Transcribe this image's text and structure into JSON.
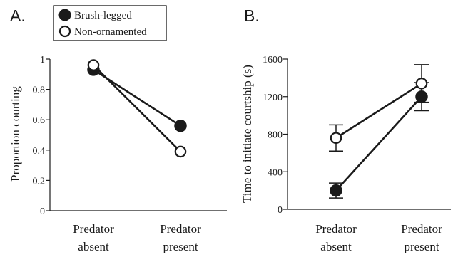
{
  "legend": {
    "items": [
      {
        "label": "Brush-legged",
        "filled": true
      },
      {
        "label": "Non-ornamented",
        "filled": false
      }
    ]
  },
  "colors": {
    "ink": "#1a1a1a",
    "open_fill": "#ffffff"
  },
  "chart_data": [
    {
      "panel_label": "A.",
      "type": "line",
      "categories": [
        "Predator\nabsent",
        "Predator\npresent"
      ],
      "ylabel": "Proportion courting",
      "xlabel": "",
      "ylim": [
        0,
        1
      ],
      "yticks": [
        0,
        0.2,
        0.4,
        0.6,
        0.8,
        1
      ],
      "ytick_labels": [
        "0",
        "0.2",
        "0.4",
        "0.6",
        "0.8",
        "1"
      ],
      "error_bars": false,
      "series": [
        {
          "name": "Brush-legged",
          "marker": "filled",
          "values": [
            0.93,
            0.56
          ]
        },
        {
          "name": "Non-ornamented",
          "marker": "open",
          "values": [
            0.96,
            0.39
          ]
        }
      ]
    },
    {
      "panel_label": "B.",
      "type": "line",
      "categories": [
        "Predator\nabsent",
        "Predator\npresent"
      ],
      "ylabel": "Time to initiate courtship (s)",
      "xlabel": "",
      "ylim": [
        0,
        1600
      ],
      "yticks": [
        0,
        400,
        800,
        1200,
        1600
      ],
      "ytick_labels": [
        "0",
        "400",
        "800",
        "1200",
        "1600"
      ],
      "error_bars": true,
      "series": [
        {
          "name": "Brush-legged",
          "marker": "filled",
          "values": [
            200,
            1200
          ],
          "errors": [
            80,
            150
          ]
        },
        {
          "name": "Non-ornamented",
          "marker": "open",
          "values": [
            760,
            1340
          ],
          "errors": [
            140,
            200
          ]
        }
      ]
    }
  ]
}
